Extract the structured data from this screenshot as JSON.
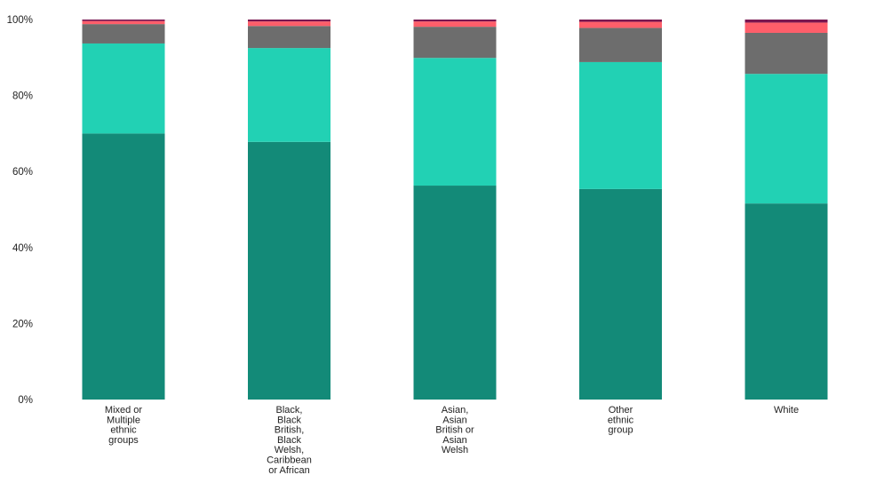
{
  "chart_data": {
    "type": "bar",
    "stacked": true,
    "percent": true,
    "categories": [
      "Mixed or Multiple ethnic groups",
      "Black, Black British, Black Welsh, Caribbean or African",
      "Asian, Asian British or Asian Welsh",
      "Other ethnic group",
      "White"
    ],
    "category_lines": [
      [
        "Mixed or",
        "Multiple",
        "ethnic",
        "groups"
      ],
      [
        "Black,",
        "Black",
        "British,",
        "Black",
        "Welsh,",
        "Caribbean",
        "or African"
      ],
      [
        "Asian,",
        "Asian",
        "British or",
        "Asian",
        "Welsh"
      ],
      [
        "Other",
        "ethnic",
        "group"
      ],
      [
        "White"
      ]
    ],
    "series": [
      {
        "color": "#138a78",
        "values": [
          70.0,
          67.8,
          56.3,
          55.4,
          51.6
        ]
      },
      {
        "color": "#22d1b4",
        "values": [
          23.7,
          24.7,
          33.6,
          33.4,
          34.1
        ]
      },
      {
        "color": "#6d6d6d",
        "values": [
          5.1,
          5.8,
          8.2,
          9.0,
          10.8
        ]
      },
      {
        "color": "#ff5e6a",
        "values": [
          0.8,
          1.2,
          1.4,
          1.6,
          2.7
        ]
      },
      {
        "color": "#7a1650",
        "values": [
          0.4,
          0.5,
          0.5,
          0.6,
          0.8
        ]
      }
    ],
    "y_ticks": [
      "0%",
      "20%",
      "40%",
      "60%",
      "80%",
      "100%"
    ],
    "ylim": [
      0,
      100
    ],
    "grid": false,
    "legend": "none"
  }
}
